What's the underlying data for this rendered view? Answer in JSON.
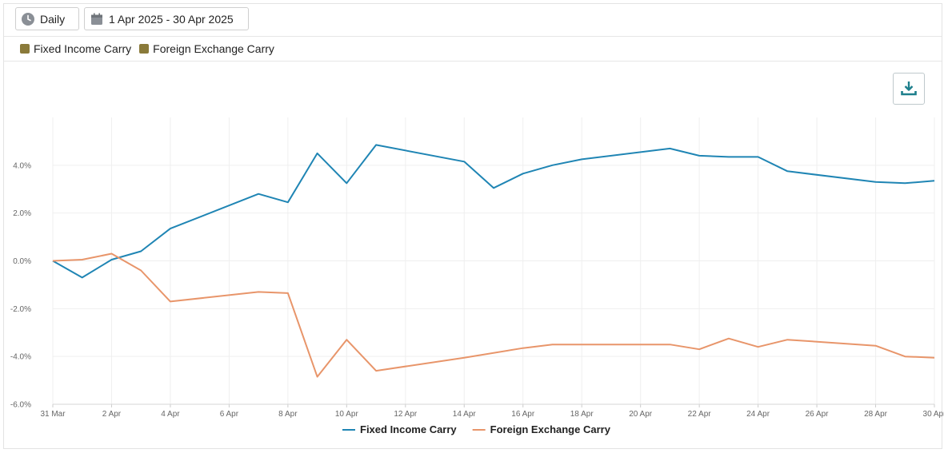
{
  "toolbar": {
    "period_label": "Daily",
    "period_icon": "clock-icon",
    "range_label": "1 Apr 2025 - 30 Apr 2025",
    "range_icon": "calendar-icon"
  },
  "filters": {
    "items": [
      {
        "label": "Fixed Income Carry",
        "color": "#8a7a3a"
      },
      {
        "label": "Foreign Exchange Carry",
        "color": "#8a7a3a"
      }
    ]
  },
  "download": {
    "icon": "download-icon"
  },
  "colors": {
    "accent": "#1d7f8c"
  },
  "chart_data": {
    "type": "line",
    "x_tick_labels": [
      "31 Mar",
      "2 Apr",
      "4 Apr",
      "6 Apr",
      "8 Apr",
      "10 Apr",
      "12 Apr",
      "14 Apr",
      "16 Apr",
      "18 Apr",
      "20 Apr",
      "22 Apr",
      "24 Apr",
      "26 Apr",
      "28 Apr",
      "30 Apr"
    ],
    "y_tick_labels": [
      "4.0%",
      "2.0%",
      "0.0%",
      "-2.0%",
      "-4.0%",
      "-6.0%"
    ],
    "y_tick_values": [
      4,
      2,
      0,
      -2,
      -4,
      -6
    ],
    "ylim": [
      -6,
      6
    ],
    "x_start": "2025-03-31",
    "x_end": "2025-04-30",
    "grid": true,
    "legend_position": "bottom-center",
    "series": [
      {
        "name": "Fixed Income Carry",
        "color": "#1f85b4",
        "points": [
          [
            "2025-03-31",
            0.0
          ],
          [
            "2025-04-01",
            -0.7
          ],
          [
            "2025-04-02",
            0.05
          ],
          [
            "2025-04-03",
            0.4
          ],
          [
            "2025-04-04",
            1.35
          ],
          [
            "2025-04-07",
            2.8
          ],
          [
            "2025-04-08",
            2.45
          ],
          [
            "2025-04-09",
            4.5
          ],
          [
            "2025-04-10",
            3.25
          ],
          [
            "2025-04-11",
            4.85
          ],
          [
            "2025-04-14",
            4.15
          ],
          [
            "2025-04-15",
            3.05
          ],
          [
            "2025-04-16",
            3.65
          ],
          [
            "2025-04-17",
            4.0
          ],
          [
            "2025-04-18",
            4.25
          ],
          [
            "2025-04-21",
            4.7
          ],
          [
            "2025-04-22",
            4.4
          ],
          [
            "2025-04-23",
            4.35
          ],
          [
            "2025-04-24",
            4.35
          ],
          [
            "2025-04-25",
            3.75
          ],
          [
            "2025-04-28",
            3.3
          ],
          [
            "2025-04-29",
            3.25
          ],
          [
            "2025-04-30",
            3.35
          ]
        ]
      },
      {
        "name": "Foreign Exchange Carry",
        "color": "#e8956a",
        "points": [
          [
            "2025-03-31",
            0.0
          ],
          [
            "2025-04-01",
            0.05
          ],
          [
            "2025-04-02",
            0.3
          ],
          [
            "2025-04-03",
            -0.4
          ],
          [
            "2025-04-04",
            -1.7
          ],
          [
            "2025-04-07",
            -1.3
          ],
          [
            "2025-04-08",
            -1.35
          ],
          [
            "2025-04-09",
            -4.85
          ],
          [
            "2025-04-10",
            -3.3
          ],
          [
            "2025-04-11",
            -4.6
          ],
          [
            "2025-04-14",
            -4.05
          ],
          [
            "2025-04-16",
            -3.65
          ],
          [
            "2025-04-17",
            -3.5
          ],
          [
            "2025-04-21",
            -3.5
          ],
          [
            "2025-04-22",
            -3.7
          ],
          [
            "2025-04-23",
            -3.25
          ],
          [
            "2025-04-24",
            -3.6
          ],
          [
            "2025-04-25",
            -3.3
          ],
          [
            "2025-04-28",
            -3.55
          ],
          [
            "2025-04-29",
            -4.0
          ],
          [
            "2025-04-30",
            -4.05
          ]
        ]
      }
    ]
  }
}
